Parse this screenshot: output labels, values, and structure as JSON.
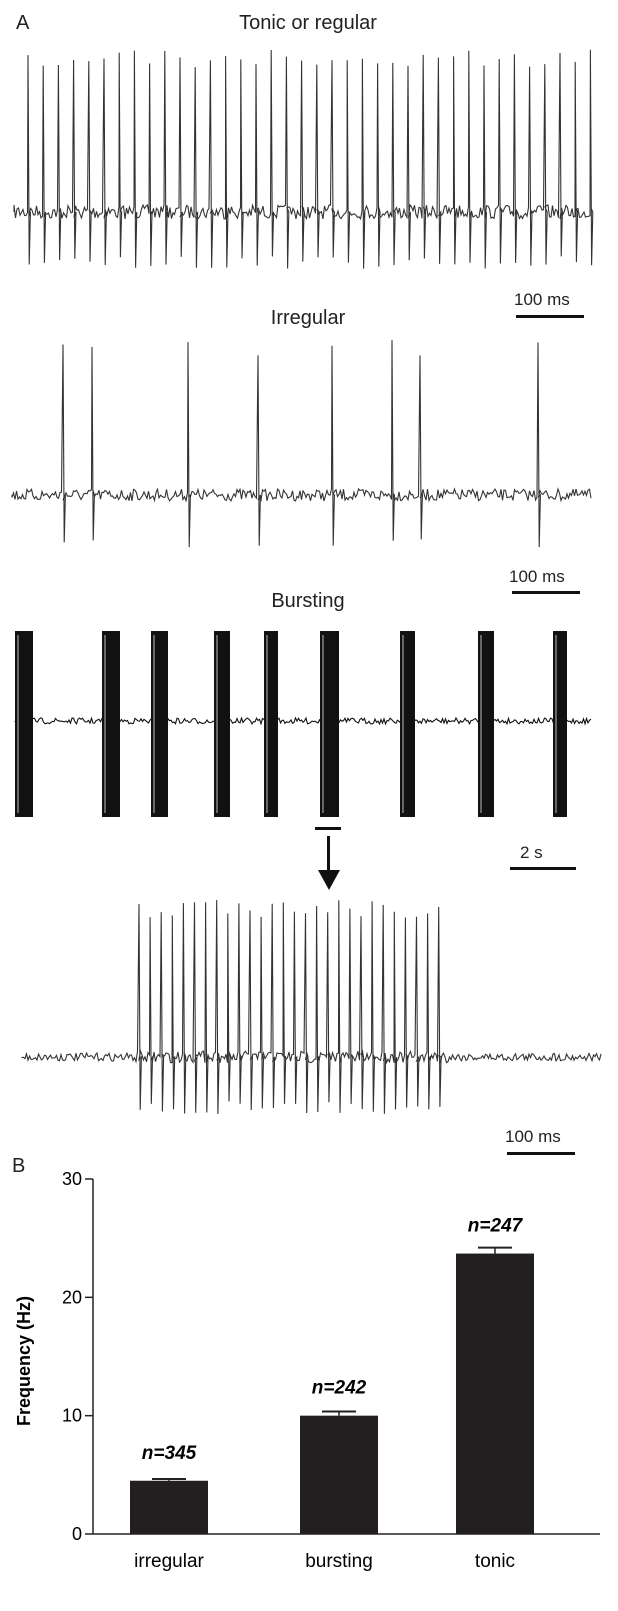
{
  "panel_a": {
    "letter": "A",
    "traces": [
      {
        "title": "Tonic or regular",
        "scale_label": "100 ms"
      },
      {
        "title": "Irregular",
        "scale_label": "100 ms"
      },
      {
        "title": "Bursting",
        "scale_label": "2 s"
      },
      {
        "title": "",
        "scale_label": "100 ms"
      }
    ]
  },
  "panel_b": {
    "letter": "B"
  },
  "chart_data": {
    "type": "bar",
    "title": "",
    "xlabel": "",
    "ylabel": "Frequency (Hz)",
    "ylim": [
      0,
      30
    ],
    "yticks": [
      0,
      10,
      20,
      30
    ],
    "categories": [
      "irregular",
      "bursting",
      "tonic"
    ],
    "values": [
      4.5,
      10.0,
      23.7
    ],
    "errors": [
      0.15,
      0.35,
      0.5
    ],
    "annotations": [
      "n=345",
      "n=242",
      "n=247"
    ],
    "bar_color": "#231f20"
  }
}
